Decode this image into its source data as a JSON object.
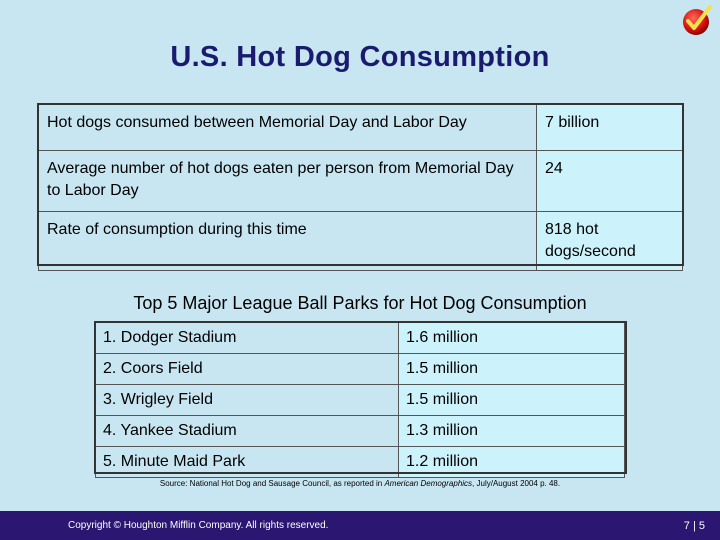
{
  "title": "U.S. Hot Dog Consumption",
  "stats": [
    {
      "label": "Hot dogs consumed between Memorial Day and Labor Day",
      "value": "7 billion"
    },
    {
      "label": "Average number of hot dogs eaten per person from Memorial Day to Labor Day",
      "value": "24"
    },
    {
      "label": "Rate of consumption during this time",
      "value": "818 hot dogs/second"
    }
  ],
  "parks_title": "Top 5 Major League Ball Parks for Hot Dog Consumption",
  "parks": [
    {
      "name": "1. Dodger Stadium",
      "value": "1.6 million"
    },
    {
      "name": "2. Coors Field",
      "value": "1.5 million"
    },
    {
      "name": "3. Wrigley Field",
      "value": "1.5 million"
    },
    {
      "name": "4. Yankee Stadium",
      "value": "1.3 million"
    },
    {
      "name": "5. Minute Maid Park",
      "value": "1.2 million"
    }
  ],
  "source": {
    "prefix": "Source: National Hot Dog and Sausage Council, as reported in ",
    "publication": "American Demographics",
    "suffix": ", July/August 2004 p. 48."
  },
  "footer": {
    "copyright": "Copyright © Houghton Mifflin Company. All rights reserved.",
    "page": "7 | 5"
  },
  "colors": {
    "title": "#1a1a6e",
    "footer_bg": "#2b1672",
    "bg": "#c7e6f2",
    "value_cell": "#ccf2fc"
  },
  "icons": {
    "logo": "red-checkmark-circle-icon"
  }
}
